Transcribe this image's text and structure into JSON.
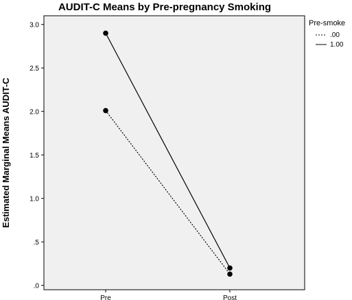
{
  "chart_data": {
    "type": "line",
    "title": "AUDIT-C Means by Pre-pregnancy Smoking",
    "xlabel": "",
    "ylabel": "Estimated Marginal Means AUDIT-C",
    "categories": [
      "Pre",
      "Post"
    ],
    "ylim": [
      -0.05,
      3.1
    ],
    "yticks": [
      0,
      0.5,
      1.0,
      1.5,
      2.0,
      2.5,
      3.0
    ],
    "ytick_labels": [
      ".0",
      ".5",
      "1.0",
      "1.5",
      "2.0",
      "2.5",
      "3.0"
    ],
    "grid": false,
    "legend": {
      "title": "Pre-smoke",
      "position": "top-right"
    },
    "series": [
      {
        "name": ".00",
        "values": [
          2.01,
          0.13
        ],
        "line_style": "dotted",
        "color": "#000000"
      },
      {
        "name": "1.00",
        "values": [
          2.9,
          0.2
        ],
        "line_style": "solid",
        "color": "#000000"
      }
    ]
  },
  "colors": {
    "plot_background": "#f0f0f0",
    "marker": "#000000",
    "line": "#000000"
  }
}
